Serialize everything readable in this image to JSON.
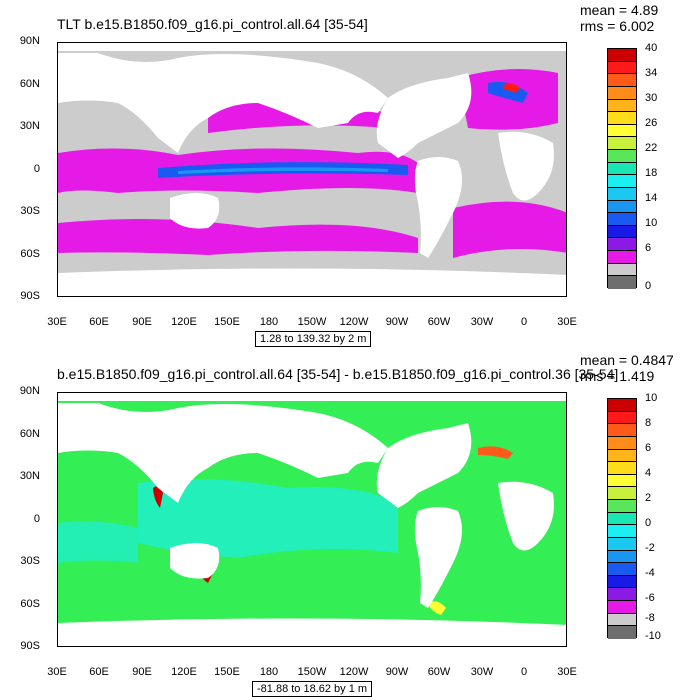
{
  "panels": [
    {
      "title": "TLT b.e15.B1850.f09_g16.pi_control.all.64 [35-54]",
      "mean": "mean = 4.89",
      "rms": "rms = 6.002",
      "range_label": "1.28 to 139.32 by 2 m",
      "lat_labels": [
        "90N",
        "60N",
        "30N",
        "0",
        "30S",
        "60S",
        "90S"
      ],
      "lon_labels": [
        "30E",
        "60E",
        "90E",
        "120E",
        "150E",
        "180",
        "150W",
        "120W",
        "90W",
        "60W",
        "30W",
        "0",
        "30E"
      ],
      "colorbar_labels": [
        "40",
        "34",
        "30",
        "26",
        "22",
        "18",
        "14",
        "10",
        "6",
        "0"
      ],
      "colors": [
        "#cc0000",
        "#ff1a1a",
        "#ff5a1a",
        "#ff8c1a",
        "#ffb41a",
        "#ffdc1a",
        "#ffff33",
        "#c8f03c",
        "#5ae65a",
        "#1ae6b4",
        "#1af0f0",
        "#1ac8f0",
        "#1a96f0",
        "#1a5af0",
        "#1a1ae6",
        "#8c1ae6",
        "#e61ae6",
        "#cccccc",
        "#6e6e6e"
      ],
      "ocean_color": "#cccccc"
    },
    {
      "title": "b.e15.B1850.f09_g16.pi_control.all.64 [35-54] - b.e15.B1850.f09_g16.pi_control.36 [35-54]",
      "mean": "mean = 0.4847",
      "rms": "rms = 1.419",
      "range_label": "-81.88 to 18.62 by 1 m",
      "lat_labels": [
        "90N",
        "60N",
        "30N",
        "0",
        "30S",
        "60S",
        "90S"
      ],
      "lon_labels": [
        "30E",
        "60E",
        "90E",
        "120E",
        "150E",
        "180",
        "150W",
        "120W",
        "90W",
        "60W",
        "30W",
        "0",
        "30E"
      ],
      "colorbar_labels": [
        "10",
        "8",
        "6",
        "4",
        "2",
        "0",
        "-2",
        "-4",
        "-6",
        "-8",
        "-10"
      ],
      "colors": [
        "#cc0000",
        "#ff1a1a",
        "#ff5a1a",
        "#ff8c1a",
        "#ffb41a",
        "#ffdc1a",
        "#ffff33",
        "#c8f03c",
        "#5ae65a",
        "#1ae6b4",
        "#1af0f0",
        "#1ac8f0",
        "#1a96f0",
        "#1a5af0",
        "#1a1ae6",
        "#8c1ae6",
        "#e61ae6",
        "#cccccc",
        "#6e6e6e"
      ],
      "ocean_color": "#33ee55"
    }
  ]
}
